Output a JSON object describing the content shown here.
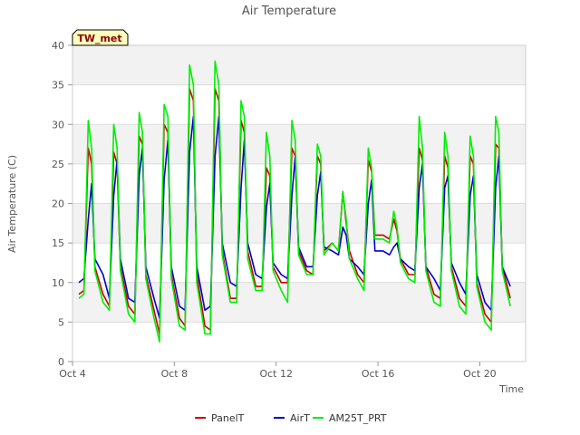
{
  "chart_data": {
    "type": "line",
    "title": "Air Temperature",
    "xlabel": "Time",
    "ylabel": "Air Temperature (C)",
    "site_label": "TW_met",
    "x_unit": "day of month (October)",
    "xlim": [
      4,
      21.8
    ],
    "ylim": [
      0,
      40
    ],
    "x_ticks": [
      4,
      8,
      12,
      16,
      20
    ],
    "x_tick_labels": [
      "Oct 4",
      "Oct 8",
      "Oct 12",
      "Oct 16",
      "Oct 20"
    ],
    "y_ticks": [
      0,
      5,
      10,
      15,
      20,
      25,
      30,
      35,
      40
    ],
    "y_tick_labels": [
      "0",
      "5",
      "10",
      "15",
      "20",
      "25",
      "30",
      "35",
      "40"
    ],
    "grid": true,
    "legend_position": "bottom-center",
    "colors": {
      "band": "#f2f2f2",
      "gridline": "#dcdcdc",
      "axis": "#cccccc",
      "site_label_fill": "#ffffc0"
    },
    "series": [
      {
        "name": "PanelT",
        "color": "#cc0000",
        "x": [
          4.25,
          4.45,
          4.62,
          4.75,
          4.88,
          5.2,
          5.45,
          5.62,
          5.75,
          5.88,
          6.2,
          6.45,
          6.62,
          6.75,
          6.88,
          7.2,
          7.42,
          7.6,
          7.75,
          7.88,
          8.2,
          8.42,
          8.6,
          8.75,
          8.88,
          9.2,
          9.42,
          9.6,
          9.75,
          9.88,
          10.2,
          10.45,
          10.62,
          10.75,
          10.88,
          11.2,
          11.45,
          11.62,
          11.75,
          11.88,
          12.2,
          12.45,
          12.62,
          12.75,
          12.88,
          13.2,
          13.45,
          13.62,
          13.75,
          13.88,
          14.2,
          14.45,
          14.62,
          14.75,
          14.88,
          15.2,
          15.45,
          15.62,
          15.75,
          15.88,
          16.2,
          16.45,
          16.62,
          16.75,
          16.88,
          17.2,
          17.45,
          17.62,
          17.75,
          17.88,
          18.2,
          18.45,
          18.62,
          18.75,
          18.88,
          19.2,
          19.45,
          19.62,
          19.75,
          19.88,
          20.2,
          20.45,
          20.62,
          20.75,
          20.88,
          21.2
        ],
        "y": [
          8.5,
          9.0,
          27.0,
          25.0,
          12.0,
          8.5,
          7.0,
          26.5,
          25.0,
          12.0,
          7.0,
          6.0,
          28.5,
          27.5,
          11.0,
          6.5,
          3.5,
          30.0,
          29.0,
          11.0,
          5.5,
          4.5,
          34.5,
          33.0,
          11.0,
          4.5,
          4.0,
          34.5,
          33.0,
          14.0,
          8.0,
          8.0,
          30.5,
          29.0,
          14.0,
          9.5,
          9.5,
          24.5,
          23.5,
          12.0,
          10.0,
          10.0,
          27.0,
          26.0,
          14.0,
          11.5,
          11.0,
          26.0,
          25.0,
          14.0,
          15.0,
          14.0,
          21.5,
          17.5,
          14.0,
          11.0,
          10.0,
          25.5,
          24.0,
          16.0,
          16.0,
          15.5,
          18.0,
          16.5,
          13.0,
          11.0,
          11.0,
          27.0,
          25.5,
          12.0,
          8.5,
          8.0,
          26.0,
          24.5,
          12.0,
          8.0,
          7.0,
          26.0,
          25.0,
          10.0,
          6.0,
          5.0,
          27.5,
          27.0,
          12.0,
          8.0
        ]
      },
      {
        "name": "AirT",
        "color": "#0000cc",
        "x": [
          4.25,
          4.45,
          4.62,
          4.75,
          4.88,
          5.2,
          5.45,
          5.62,
          5.75,
          5.88,
          6.2,
          6.45,
          6.62,
          6.75,
          6.88,
          7.2,
          7.42,
          7.6,
          7.75,
          7.88,
          8.2,
          8.42,
          8.6,
          8.75,
          8.88,
          9.2,
          9.42,
          9.6,
          9.75,
          9.88,
          10.2,
          10.45,
          10.62,
          10.75,
          10.88,
          11.2,
          11.45,
          11.62,
          11.75,
          11.88,
          12.2,
          12.45,
          12.62,
          12.75,
          12.88,
          13.2,
          13.45,
          13.62,
          13.75,
          13.88,
          14.2,
          14.45,
          14.62,
          14.75,
          14.88,
          15.2,
          15.45,
          15.62,
          15.75,
          15.88,
          16.2,
          16.45,
          16.62,
          16.75,
          16.88,
          17.2,
          17.45,
          17.62,
          17.75,
          17.88,
          18.2,
          18.45,
          18.62,
          18.75,
          18.88,
          19.2,
          19.45,
          19.62,
          19.75,
          19.88,
          20.2,
          20.45,
          20.62,
          20.75,
          20.88,
          21.2
        ],
        "y": [
          10.0,
          10.5,
          18.0,
          22.5,
          13.0,
          11.0,
          8.0,
          21.0,
          25.5,
          13.0,
          8.0,
          7.5,
          23.5,
          27.0,
          12.0,
          8.0,
          5.5,
          23.0,
          28.0,
          12.0,
          7.0,
          6.5,
          26.5,
          31.0,
          12.0,
          6.5,
          7.0,
          26.0,
          31.0,
          15.0,
          10.0,
          9.5,
          22.0,
          28.0,
          15.0,
          11.0,
          10.5,
          19.5,
          22.5,
          12.5,
          11.0,
          10.5,
          21.0,
          26.0,
          14.5,
          12.0,
          12.0,
          21.0,
          24.0,
          14.5,
          14.0,
          13.5,
          17.0,
          16.0,
          13.0,
          12.0,
          11.0,
          20.0,
          23.0,
          14.0,
          14.0,
          13.5,
          14.5,
          15.0,
          13.0,
          12.0,
          11.5,
          22.0,
          25.0,
          12.0,
          10.5,
          9.0,
          22.0,
          23.5,
          12.5,
          10.0,
          8.5,
          21.0,
          23.5,
          11.0,
          7.5,
          6.5,
          22.0,
          26.0,
          12.0,
          9.5
        ]
      },
      {
        "name": "AM25T_PRT",
        "color": "#00ee00",
        "x": [
          4.25,
          4.45,
          4.62,
          4.75,
          4.88,
          5.2,
          5.45,
          5.62,
          5.75,
          5.88,
          6.2,
          6.45,
          6.62,
          6.75,
          6.88,
          7.2,
          7.42,
          7.6,
          7.75,
          7.88,
          8.2,
          8.42,
          8.6,
          8.75,
          8.88,
          9.2,
          9.42,
          9.6,
          9.75,
          9.88,
          10.2,
          10.45,
          10.62,
          10.75,
          10.88,
          11.2,
          11.45,
          11.62,
          11.75,
          11.88,
          12.2,
          12.45,
          12.62,
          12.75,
          12.88,
          13.2,
          13.45,
          13.62,
          13.75,
          13.88,
          14.2,
          14.45,
          14.62,
          14.75,
          14.88,
          15.2,
          15.45,
          15.62,
          15.75,
          15.88,
          16.2,
          16.45,
          16.62,
          16.75,
          16.88,
          17.2,
          17.45,
          17.62,
          17.75,
          17.88,
          18.2,
          18.45,
          18.62,
          18.75,
          18.88,
          19.2,
          19.45,
          19.62,
          19.75,
          19.88,
          20.2,
          20.45,
          20.62,
          20.75,
          20.88,
          21.2
        ],
        "y": [
          8.0,
          8.5,
          30.5,
          27.0,
          11.5,
          7.5,
          6.5,
          30.0,
          27.0,
          11.5,
          6.0,
          5.0,
          31.5,
          29.0,
          10.5,
          5.5,
          2.5,
          32.5,
          31.0,
          10.5,
          4.5,
          4.0,
          37.5,
          35.0,
          10.0,
          3.5,
          3.5,
          38.0,
          35.0,
          13.5,
          7.5,
          7.5,
          33.0,
          31.0,
          13.0,
          9.0,
          9.0,
          29.0,
          26.0,
          11.5,
          9.0,
          7.5,
          30.5,
          28.0,
          13.5,
          11.0,
          11.0,
          27.5,
          26.0,
          13.5,
          15.0,
          14.0,
          21.5,
          18.0,
          13.0,
          10.5,
          9.0,
          27.0,
          24.5,
          15.5,
          15.5,
          15.0,
          19.0,
          17.0,
          12.5,
          10.5,
          10.0,
          31.0,
          27.0,
          11.5,
          7.5,
          7.0,
          29.0,
          26.0,
          11.5,
          7.0,
          6.0,
          28.5,
          26.0,
          9.5,
          5.0,
          4.0,
          31.0,
          29.0,
          11.5,
          7.0
        ]
      }
    ]
  }
}
